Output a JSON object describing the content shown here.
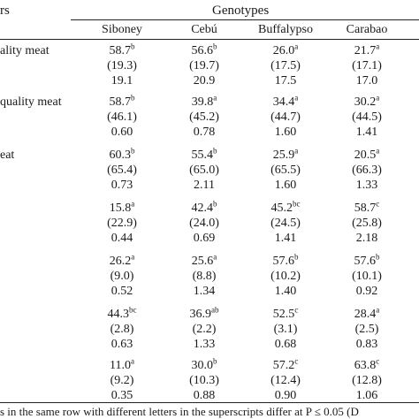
{
  "header": {
    "group_label": "Genotypes",
    "stub_label_fragment": "rs",
    "columns": [
      "Siboney",
      "Cebú",
      "Buffalypso",
      "Carabao"
    ]
  },
  "row_labels": [
    "ality meat",
    "quality meat",
    "eat"
  ],
  "rows": [
    {
      "mean": [
        {
          "v": "58.7",
          "s": "b"
        },
        {
          "v": "56.6",
          "s": "b"
        },
        {
          "v": "26.0",
          "s": "a"
        },
        {
          "v": "21.7",
          "s": "a"
        }
      ],
      "paren": [
        "(19.3)",
        "(19.7)",
        "(17.5)",
        "(17.1)"
      ],
      "third": [
        "19.1",
        "20.9",
        "17.5",
        "17.0"
      ]
    },
    {
      "mean": [
        {
          "v": "58.7",
          "s": "b"
        },
        {
          "v": "39.8",
          "s": "a"
        },
        {
          "v": "34.4",
          "s": "a"
        },
        {
          "v": "30.2",
          "s": "a"
        }
      ],
      "paren": [
        "(46.1)",
        "(45.2)",
        "(44.7)",
        "(44.5)"
      ],
      "third": [
        "0.60",
        "0.78",
        "1.60",
        "1.41"
      ]
    },
    {
      "mean": [
        {
          "v": "60.3",
          "s": "b"
        },
        {
          "v": "55.4",
          "s": "b"
        },
        {
          "v": "25.9",
          "s": "a"
        },
        {
          "v": "20.5",
          "s": "a"
        }
      ],
      "paren": [
        "(65.4)",
        "(65.0)",
        "(65.5)",
        "(66.3)"
      ],
      "third": [
        "0.73",
        "2.11",
        "1.60",
        "1.33"
      ]
    },
    {
      "mean": [
        {
          "v": "15.8",
          "s": "a"
        },
        {
          "v": "42.4",
          "s": "b"
        },
        {
          "v": "45.2",
          "s": "bc"
        },
        {
          "v": "58.7",
          "s": "c"
        }
      ],
      "paren": [
        "(22.9)",
        "(24.0)",
        "(24.5)",
        "(25.8)"
      ],
      "third": [
        "0.44",
        "0.69",
        "1.41",
        "2.18"
      ]
    },
    {
      "mean": [
        {
          "v": "26.2",
          "s": "a"
        },
        {
          "v": "25.6",
          "s": "a"
        },
        {
          "v": "57.6",
          "s": "b"
        },
        {
          "v": "57.6",
          "s": "b"
        }
      ],
      "paren": [
        "(9.0)",
        "(8.8)",
        "(10.2)",
        "(10.1)"
      ],
      "third": [
        "0.52",
        "1.34",
        "1.40",
        "0.92"
      ]
    },
    {
      "mean": [
        {
          "v": "44.3",
          "s": "bc"
        },
        {
          "v": "36.9",
          "s": "ab"
        },
        {
          "v": "52.5",
          "s": "c"
        },
        {
          "v": "28.4",
          "s": "a"
        }
      ],
      "paren": [
        "(2.8)",
        "(2.2)",
        "(3.1)",
        "(2.5)"
      ],
      "third": [
        "0.63",
        "1.33",
        "0.68",
        "0.83"
      ]
    },
    {
      "mean": [
        {
          "v": "11.0",
          "s": "a"
        },
        {
          "v": "30.0",
          "s": "b"
        },
        {
          "v": "57.2",
          "s": "c"
        },
        {
          "v": "63.8",
          "s": "c"
        }
      ],
      "paren": [
        "(9.2)",
        "(10.3)",
        "(12.4)",
        "(12.8)"
      ],
      "third": [
        "0.35",
        "0.88",
        "0.90",
        "1.06"
      ]
    }
  ],
  "footnote": "s in the same row with different letters in the superscripts differ at P ≤ 0.05 (D"
}
